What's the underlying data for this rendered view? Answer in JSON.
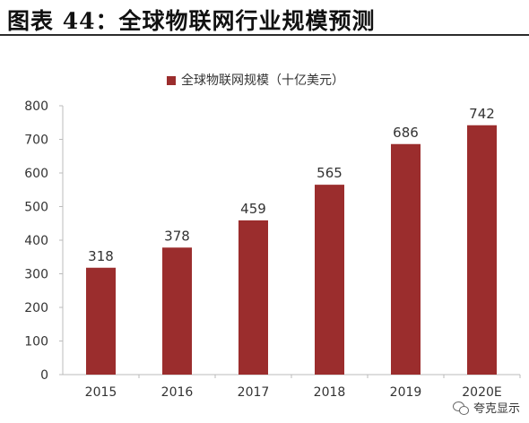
{
  "figure_title": "图表 44：全球物联网行业规模预测",
  "watermark": {
    "icon": "wechat-icon",
    "text": "夸克显示"
  },
  "chart_data": {
    "type": "bar",
    "title": "",
    "categories": [
      "2015",
      "2016",
      "2017",
      "2018",
      "2019",
      "2020E"
    ],
    "series": [
      {
        "name": "全球物联网规模（十亿美元）",
        "values": [
          318,
          378,
          459,
          565,
          686,
          742
        ],
        "color": "#9b2d2d"
      }
    ],
    "data_labels": [
      "318",
      "378",
      "459",
      "565",
      "686",
      "742"
    ],
    "yticks": [
      "0",
      "100",
      "200",
      "300",
      "400",
      "500",
      "600",
      "700",
      "800"
    ],
    "ylim": [
      0,
      800
    ],
    "xlabel": "",
    "ylabel": "",
    "grid": false,
    "legend_position": "top-center"
  }
}
